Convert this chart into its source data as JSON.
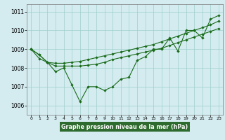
{
  "x": [
    0,
    1,
    2,
    3,
    4,
    5,
    6,
    7,
    8,
    9,
    10,
    11,
    12,
    13,
    14,
    15,
    16,
    17,
    18,
    19,
    20,
    21,
    22,
    23
  ],
  "line1": [
    1009.0,
    1008.5,
    1008.3,
    1007.8,
    1008.0,
    1007.1,
    1006.2,
    1007.0,
    1007.0,
    1006.8,
    1007.0,
    1007.4,
    1007.5,
    1008.4,
    1008.6,
    1009.0,
    1009.0,
    1009.6,
    1008.9,
    1010.0,
    1010.0,
    1009.6,
    1010.6,
    1010.8
  ],
  "line2": [
    1009.0,
    1008.7,
    1008.3,
    1008.1,
    1008.1,
    1008.1,
    1008.1,
    1008.15,
    1008.2,
    1008.3,
    1008.45,
    1008.55,
    1008.65,
    1008.75,
    1008.85,
    1008.95,
    1009.05,
    1009.2,
    1009.35,
    1009.5,
    1009.65,
    1009.8,
    1009.95,
    1010.1
  ],
  "line3": [
    1009.0,
    1008.7,
    1008.3,
    1008.25,
    1008.25,
    1008.3,
    1008.35,
    1008.45,
    1008.55,
    1008.65,
    1008.75,
    1008.85,
    1008.95,
    1009.05,
    1009.15,
    1009.25,
    1009.4,
    1009.55,
    1009.7,
    1009.85,
    1010.0,
    1010.15,
    1010.3,
    1010.5
  ],
  "bg_color": "#d4ecf0",
  "grid_color": "#9ecfca",
  "line_color": "#1a6b1a",
  "xlabel": "Graphe pression niveau de la mer (hPa)",
  "xlabel_bg": "#2e6b2e",
  "xlabel_fg": "#ffffff",
  "ylim": [
    1005.5,
    1011.4
  ],
  "yticks": [
    1006,
    1007,
    1008,
    1009,
    1010,
    1011
  ],
  "marker": "D",
  "markersize": 2.2,
  "lw": 0.8
}
